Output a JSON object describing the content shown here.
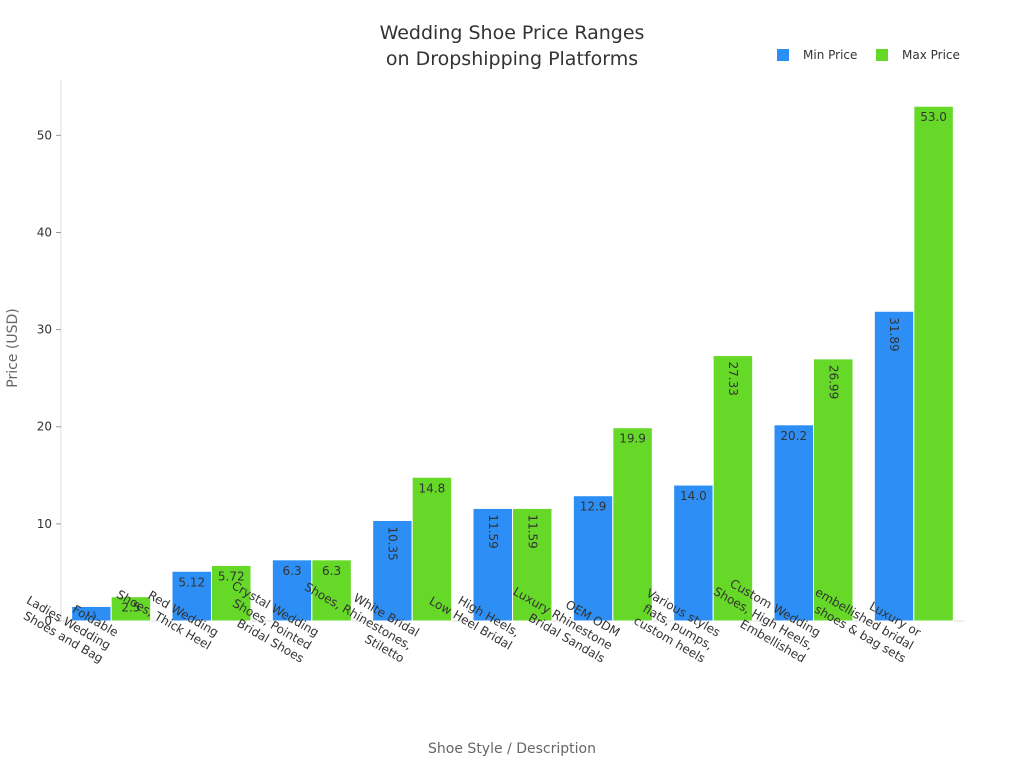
{
  "chart_data": {
    "type": "bar",
    "title_lines": [
      "Wedding Shoe Price Ranges",
      "on Dropshipping Platforms"
    ],
    "xlabel": "Shoe Style / Description",
    "ylabel": "Price (USD)",
    "ylim": [
      0,
      55.7
    ],
    "yticks": [
      0,
      10,
      20,
      30,
      40,
      50
    ],
    "grid": false,
    "legend_position": "top-right",
    "categories": [
      [
        "Foldable",
        "Ladies Wedding",
        "Shoes and Bag"
      ],
      [
        "Red Wedding",
        "Shoes, Thick Heel"
      ],
      [
        "Crystal Wedding",
        "Shoes, Pointed",
        "Bridal Shoes"
      ],
      [
        "White Bridal",
        "Shoes, Rhinestones,",
        "Stiletto"
      ],
      [
        "High Heels,",
        "Low Heel Bridal"
      ],
      [
        "OEM ODM",
        "Luxury Rhinestone",
        "Bridal Sandals"
      ],
      [
        "Various styles",
        "flats, pumps,",
        "custom heels"
      ],
      [
        "Custom Wedding",
        "Shoes, High Heels,",
        "Embellished"
      ],
      [
        "Luxury or",
        "embellished bridal",
        "shoes & bag sets"
      ]
    ],
    "series": [
      {
        "name": "Min Price",
        "color": "#2d8ff5",
        "values": [
          1.5,
          5.12,
          6.3,
          10.35,
          11.59,
          12.9,
          14.0,
          20.2,
          31.89
        ],
        "labels": [
          "1.5",
          "5.12",
          "6.3",
          "10.35",
          "11.59",
          "12.9",
          "14.0",
          "20.2",
          "31.89"
        ]
      },
      {
        "name": "Max Price",
        "color": "#66d928",
        "values": [
          2.5,
          5.72,
          6.3,
          14.8,
          11.59,
          19.9,
          27.33,
          26.99,
          53.0
        ],
        "labels": [
          "2.5",
          "5.72",
          "6.3",
          "14.8",
          "11.59",
          "19.9",
          "27.33",
          "26.99",
          "53.0"
        ]
      }
    ]
  }
}
